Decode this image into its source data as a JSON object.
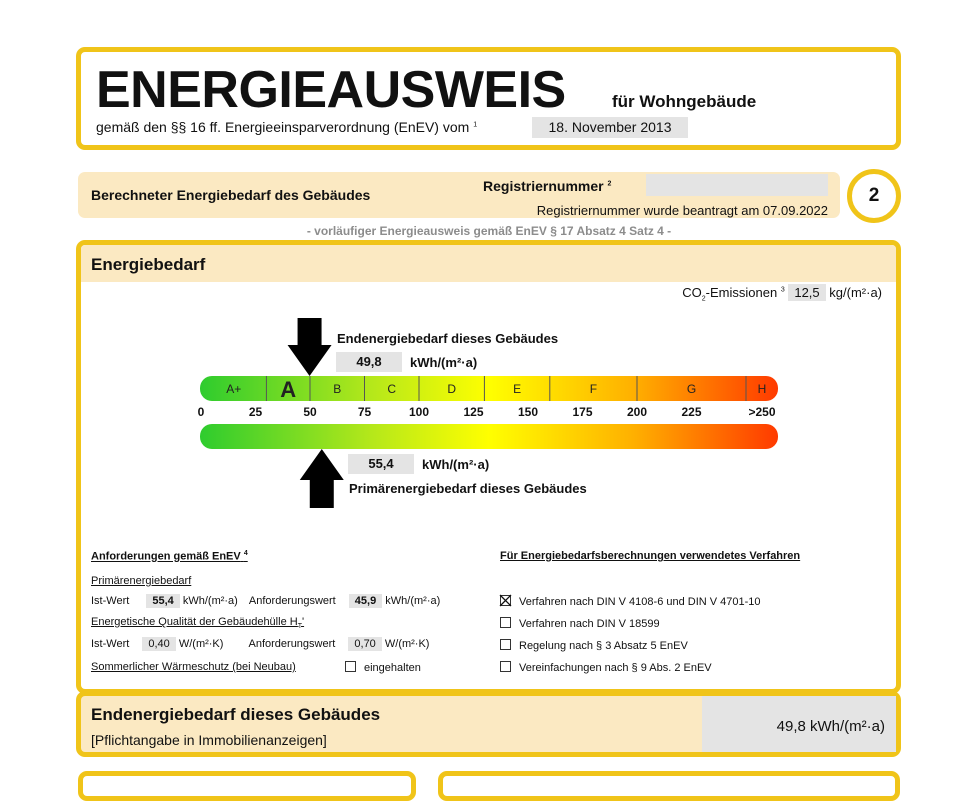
{
  "header": {
    "title": "ENERGIEAUSWEIS",
    "subtitle_type": "für Wohngebäude",
    "basis": "gemäß den §§ 16 ff. Energieeinsparverordnung (EnEV) vom",
    "basis_footnote": "1",
    "enev_date": "18. November 2013"
  },
  "registration": {
    "section_title": "Berechneter Energiebedarf des Gebäudes",
    "label": "Registriernummer",
    "footnote": "2",
    "value": "",
    "note": "Registriernummer wurde beantragt am 07.09.2022",
    "page_number": "2",
    "provisional": "- vorläufiger Energieausweis gemäß EnEV § 17 Absatz 4 Satz 4 -"
  },
  "energiebedarf": {
    "title": "Energiebedarf",
    "co2_label": "CO",
    "co2_sub": "2",
    "co2_label_rest": "-Emissionen",
    "co2_footnote": "3",
    "co2_value": "12,5",
    "co2_unit": "kg/(m²·a)"
  },
  "chart_data": {
    "type": "gauge",
    "range": [
      0,
      250
    ],
    "ticks": [
      "0",
      "25",
      "50",
      "75",
      "100",
      "125",
      "150",
      "175",
      "200",
      "225",
      ">250"
    ],
    "tick_values": [
      0,
      25,
      50,
      75,
      100,
      125,
      150,
      175,
      200,
      225,
      250
    ],
    "classes": [
      {
        "label": "A+",
        "from": 0,
        "to": 30
      },
      {
        "label": "A",
        "from": 30,
        "to": 50
      },
      {
        "label": "B",
        "from": 50,
        "to": 75
      },
      {
        "label": "C",
        "from": 75,
        "to": 100
      },
      {
        "label": "D",
        "from": 100,
        "to": 130
      },
      {
        "label": "E",
        "from": 130,
        "to": 160
      },
      {
        "label": "F",
        "from": 160,
        "to": 200
      },
      {
        "label": "G",
        "from": 200,
        "to": 250
      },
      {
        "label": "H",
        "from": 250,
        "to": 265
      }
    ],
    "highlighted_class": "A",
    "colors": [
      "#2ecc2e",
      "#b6e81a",
      "#ffff00",
      "#ffb000",
      "#ff3a00"
    ],
    "end_energy": {
      "label": "Endenergiebedarf dieses Gebäudes",
      "value": 49.8,
      "value_text": "49,8",
      "unit": "kWh/(m²·a)"
    },
    "primary_energy": {
      "label": "Primärenergiebedarf dieses Gebäudes",
      "value": 55.4,
      "value_text": "55,4",
      "unit": "kWh/(m²·a)"
    }
  },
  "requirements": {
    "title": "Anforderungen gemäß EnEV",
    "footnote": "4",
    "primary_title": "Primärenergiebedarf",
    "ist_label": "Ist-Wert",
    "primary_ist": "55,4",
    "primary_unit": "kWh/(m²·a)",
    "anf_label": "Anforderungswert",
    "primary_anf": "45,9",
    "envelope_title": "Energetische Qualität der Gebäudehülle H",
    "envelope_sub": "T",
    "envelope_prime": "'",
    "envelope_ist": "0,40",
    "envelope_unit": "W/(m²·K)",
    "envelope_anf": "0,70",
    "summer_label": "Sommerlicher Wärmeschutz (bei Neubau)",
    "summer_option": "eingehalten"
  },
  "procedure": {
    "title": "Für Energiebedarfsberechnungen verwendetes Verfahren",
    "options": [
      {
        "label": "Verfahren nach DIN V 4108-6 und DIN V 4701-10",
        "checked": true
      },
      {
        "label": "Verfahren nach DIN V 18599",
        "checked": false
      },
      {
        "label": "Regelung nach § 3 Absatz 5 EnEV",
        "checked": false
      },
      {
        "label": "Vereinfachungen nach § 9 Abs. 2 EnEV",
        "checked": false
      }
    ]
  },
  "summary": {
    "title": "Endenergiebedarf dieses Gebäudes",
    "subtitle": "[Pflichtangabe in Immobilienanzeigen]",
    "value": "49,8 kWh/(m²·a)"
  }
}
